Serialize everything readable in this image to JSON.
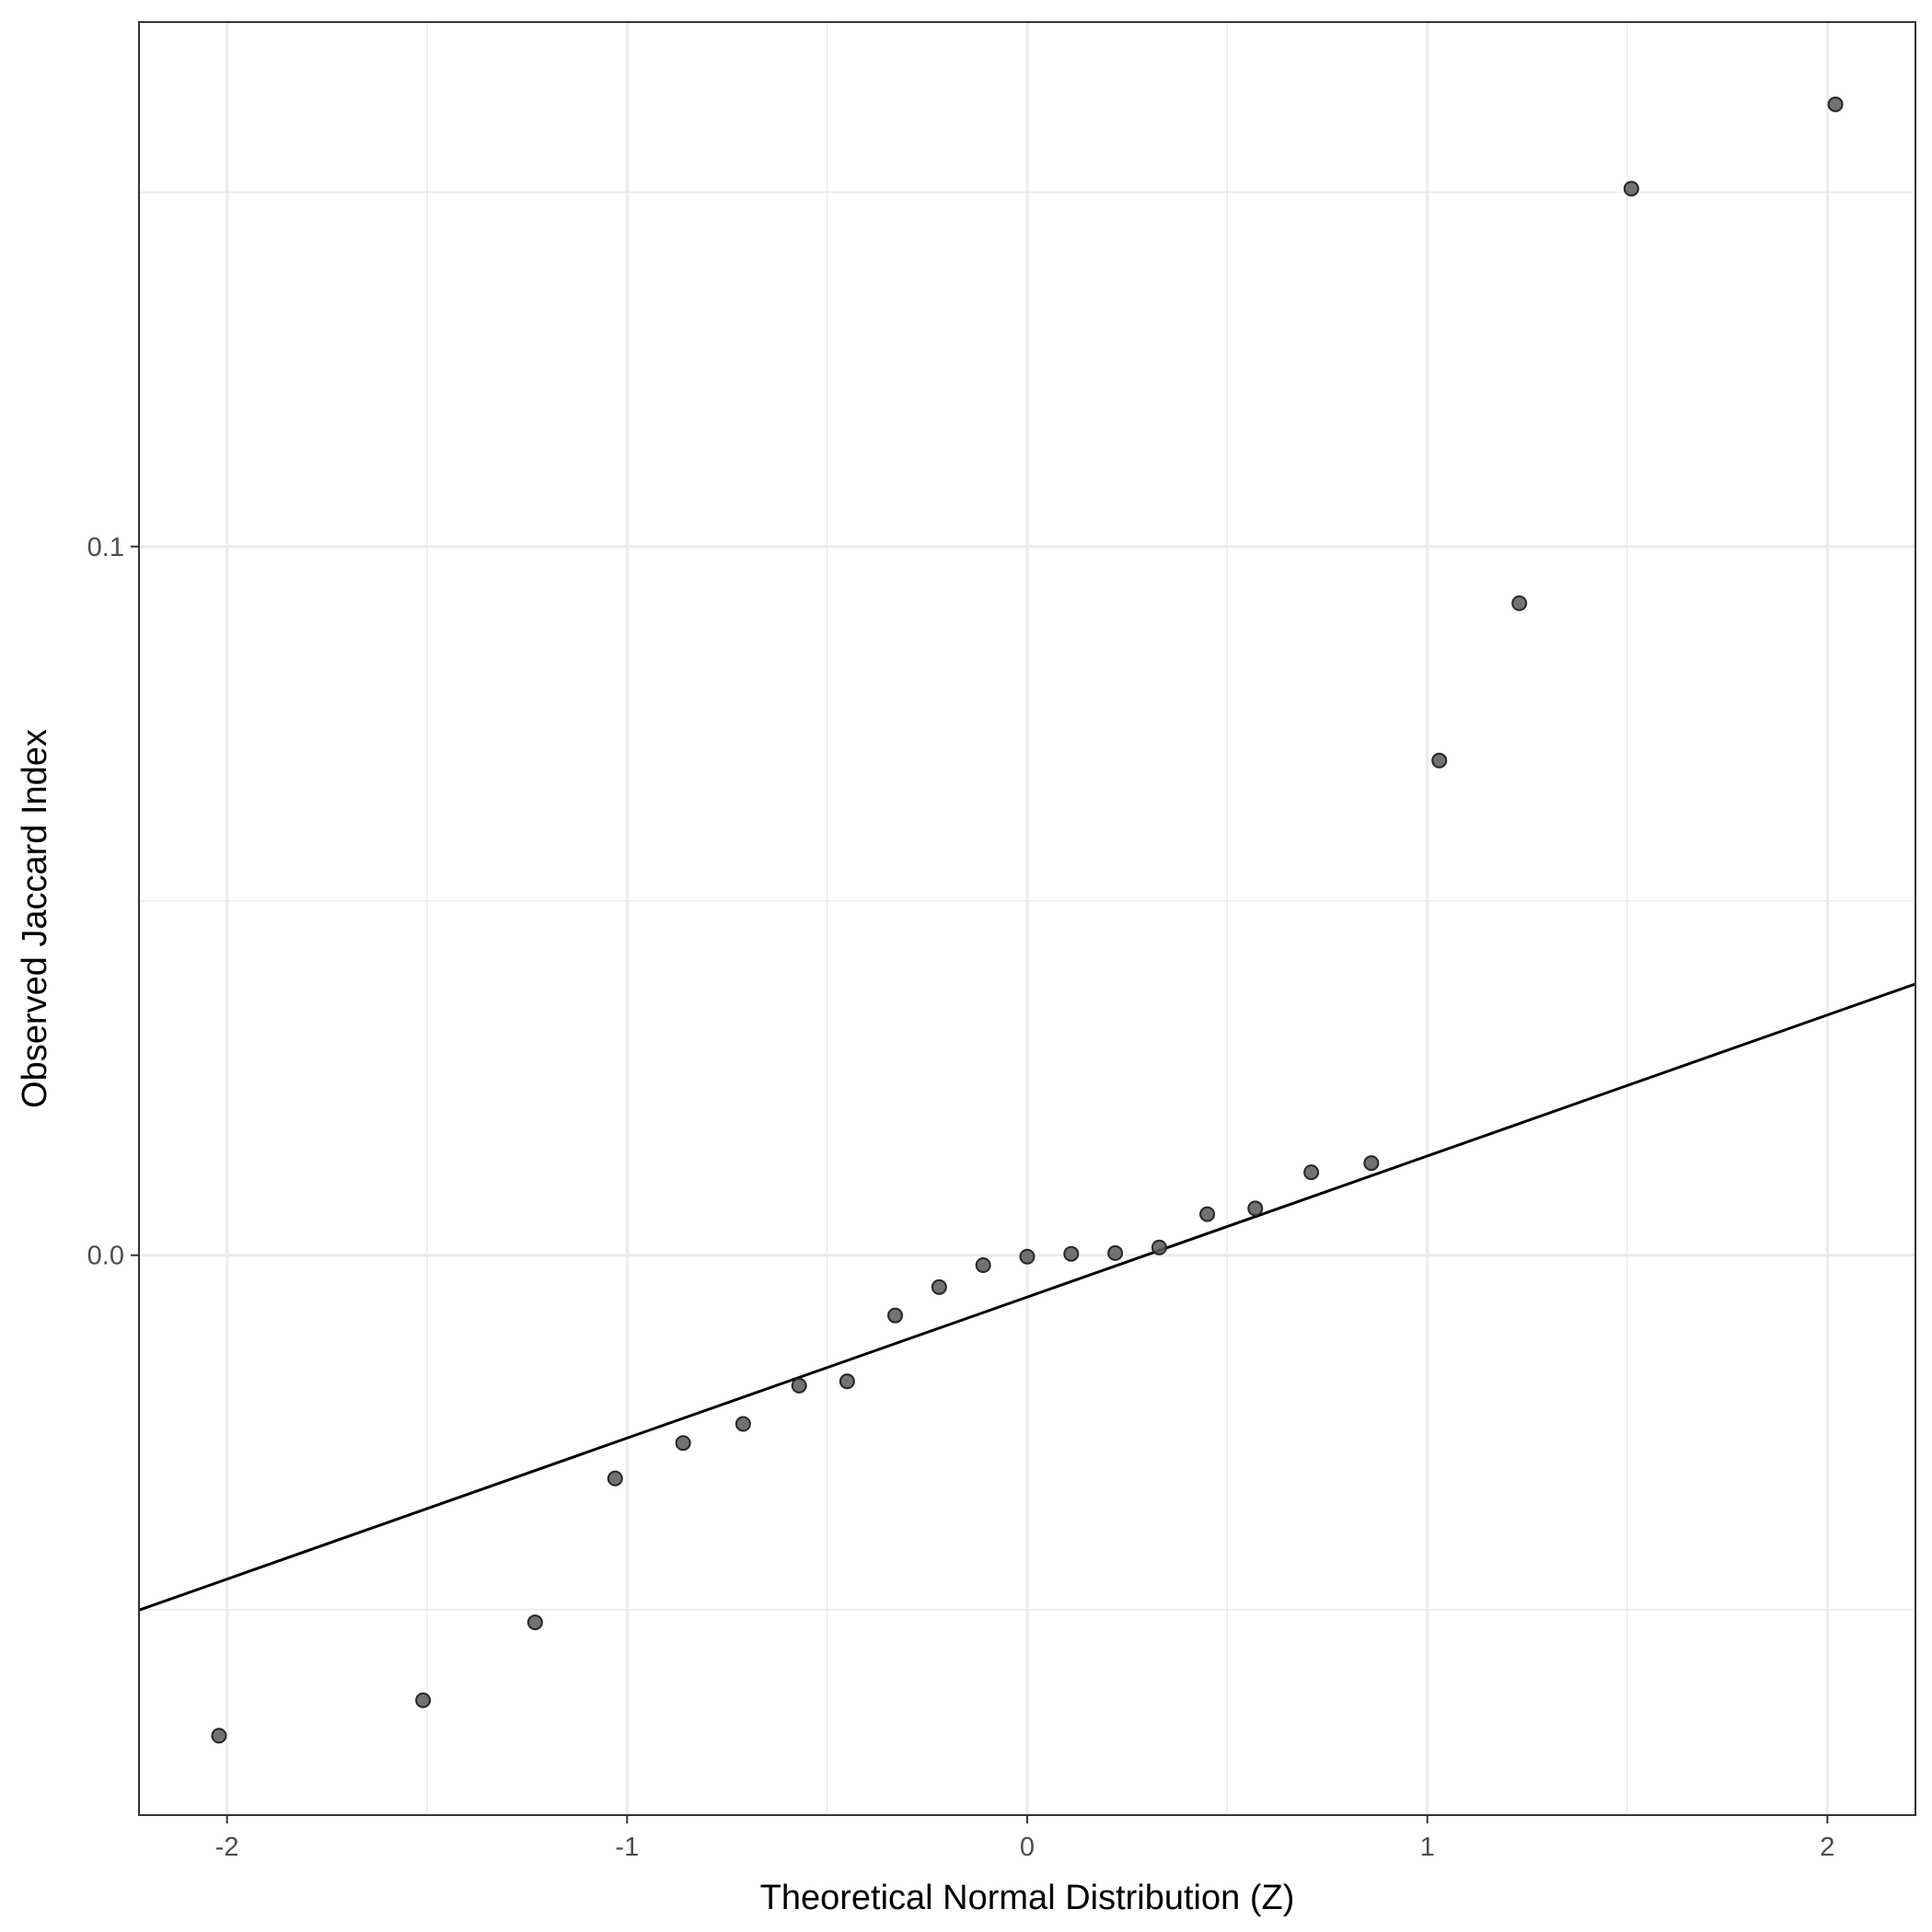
{
  "chart_data": {
    "type": "scatter",
    "xlabel": "Theoretical Normal Distribution (Z)",
    "ylabel": "Observed Jaccard Index",
    "xlim": [
      -2.22,
      2.22
    ],
    "ylim": [
      -0.079,
      0.174
    ],
    "x_ticks": [
      {
        "value": -2,
        "label": "-2"
      },
      {
        "value": -1,
        "label": "-1"
      },
      {
        "value": 0,
        "label": "0"
      },
      {
        "value": 1,
        "label": "1"
      },
      {
        "value": 2,
        "label": "2"
      }
    ],
    "y_ticks": [
      {
        "value": 0.0,
        "label": "0.0"
      },
      {
        "value": 0.1,
        "label": "0.1"
      }
    ],
    "x_minor_grid": [
      -1.5,
      -0.5,
      0.5,
      1.5
    ],
    "y_minor_grid": [
      -0.05,
      0.05,
      0.15
    ],
    "grid": true,
    "points": [
      {
        "x": -2.02,
        "y": -0.0678
      },
      {
        "x": -1.51,
        "y": -0.0628
      },
      {
        "x": -1.23,
        "y": -0.0518
      },
      {
        "x": -1.03,
        "y": -0.0315
      },
      {
        "x": -0.86,
        "y": -0.0265
      },
      {
        "x": -0.71,
        "y": -0.0238
      },
      {
        "x": -0.57,
        "y": -0.0184
      },
      {
        "x": -0.45,
        "y": -0.0178
      },
      {
        "x": -0.33,
        "y": -0.0085
      },
      {
        "x": -0.22,
        "y": -0.0045
      },
      {
        "x": -0.11,
        "y": -0.0014
      },
      {
        "x": 0.0,
        "y": -0.0002
      },
      {
        "x": 0.11,
        "y": 0.0002
      },
      {
        "x": 0.22,
        "y": 0.0003
      },
      {
        "x": 0.33,
        "y": 0.0011
      },
      {
        "x": 0.45,
        "y": 0.0058
      },
      {
        "x": 0.57,
        "y": 0.0066
      },
      {
        "x": 0.71,
        "y": 0.0117
      },
      {
        "x": 0.86,
        "y": 0.013
      },
      {
        "x": 1.03,
        "y": 0.0698
      },
      {
        "x": 1.23,
        "y": 0.092
      },
      {
        "x": 1.51,
        "y": 0.1505
      },
      {
        "x": 2.02,
        "y": 0.1624
      }
    ],
    "reference_line": {
      "slope": 0.0199,
      "intercept": -0.0059
    },
    "point_color": "#595959",
    "line_color": "#000000",
    "grid_color": "#ebebeb"
  }
}
